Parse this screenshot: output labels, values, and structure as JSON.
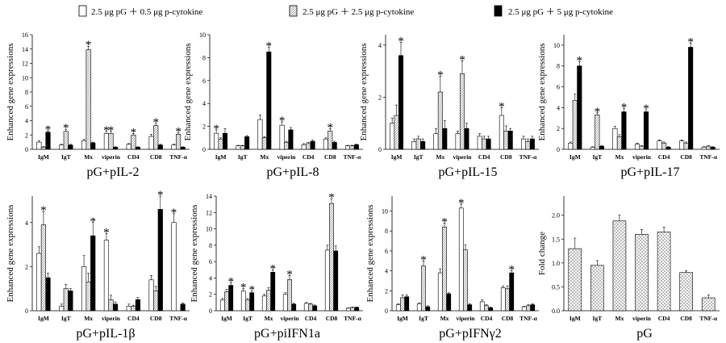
{
  "legend": [
    {
      "label": "2.5 μg pG ＋ 0.5 μg p-cytokine",
      "pattern": "white"
    },
    {
      "label": "2.5 μg pG ＋ 2.5 μg p-cytokine",
      "pattern": "hatch"
    },
    {
      "label": "2.5 μg pG ＋ 5 μg p-cytokine",
      "pattern": "black"
    }
  ],
  "colors": {
    "bar_black": "#000000",
    "bar_white": "#ffffff",
    "hatch": "#8a8a8a",
    "axis": "#000000"
  },
  "chart_data": [
    {
      "type": "bar",
      "title": "pG+pIL-2",
      "ylabel": "Enhanced gene expressions",
      "xlabel": "",
      "ylim": [
        0,
        16
      ],
      "yticks": [
        0,
        2,
        4,
        6,
        8,
        10,
        12,
        14,
        16
      ],
      "categories": [
        "IgM",
        "IgT",
        "Mx",
        "viperin",
        "CD4",
        "CD8",
        "TNF-α"
      ],
      "series": [
        {
          "name": "0.5 μg",
          "values": [
            1.0,
            0.6,
            1.2,
            2.2,
            0.7,
            1.8,
            0.6
          ],
          "errors": [
            0.2,
            0.1,
            0.2,
            0.3,
            0.1,
            0.3,
            0.1
          ],
          "sig": [
            false,
            false,
            false,
            true,
            false,
            false,
            false
          ]
        },
        {
          "name": "2.5 μg",
          "values": [
            0.3,
            2.5,
            13.9,
            2.2,
            2.0,
            3.3,
            2.1
          ],
          "errors": [
            0.1,
            0.3,
            0.5,
            0.3,
            0.2,
            0.3,
            0.2
          ],
          "sig": [
            false,
            true,
            true,
            true,
            true,
            true,
            true
          ]
        },
        {
          "name": "5 μg",
          "values": [
            2.4,
            0.6,
            0.9,
            0.3,
            0.3,
            0.6,
            0.3
          ],
          "errors": [
            0.2,
            0.1,
            0.1,
            0.05,
            0.05,
            0.1,
            0.05
          ],
          "sig": [
            true,
            false,
            false,
            false,
            false,
            false,
            false
          ]
        }
      ]
    },
    {
      "type": "bar",
      "title": "pG+pIL-8",
      "ylabel": "Enhanced gene expressions",
      "xlabel": "",
      "ylim": [
        0,
        10
      ],
      "yticks": [
        0,
        2,
        4,
        6,
        8,
        10
      ],
      "categories": [
        "IgM",
        "IgT",
        "Mx",
        "viperin",
        "CD4",
        "CD8",
        "TNF-α"
      ],
      "series": [
        {
          "name": "0.5 μg",
          "values": [
            1.4,
            0.3,
            2.6,
            2.1,
            0.4,
            0.9,
            0.3
          ],
          "errors": [
            0.3,
            0.05,
            0.4,
            0.3,
            0.1,
            0.1,
            0.05
          ],
          "sig": [
            true,
            false,
            false,
            true,
            false,
            false,
            false
          ]
        },
        {
          "name": "2.5 μg",
          "values": [
            0.9,
            0.3,
            1.0,
            0.6,
            0.5,
            1.6,
            0.3
          ],
          "errors": [
            0.1,
            0.05,
            0.1,
            0.1,
            0.1,
            0.2,
            0.05
          ],
          "sig": [
            false,
            false,
            false,
            false,
            false,
            true,
            false
          ]
        },
        {
          "name": "5 μg",
          "values": [
            1.4,
            1.1,
            8.5,
            1.7,
            0.7,
            0.6,
            0.4
          ],
          "errors": [
            0.4,
            0.1,
            0.4,
            0.2,
            0.1,
            0.1,
            0.05
          ],
          "sig": [
            false,
            false,
            true,
            false,
            false,
            false,
            false
          ]
        }
      ]
    },
    {
      "type": "bar",
      "title": "pG+pIL-15",
      "ylabel": "Enhanced gene expressions",
      "xlabel": "",
      "ylim": [
        0,
        4.4
      ],
      "yticks": [
        0,
        2,
        4
      ],
      "categories": [
        "IgM",
        "IgT",
        "Mx",
        "viperin",
        "CD4",
        "CD8",
        "TNF-α"
      ],
      "series": [
        {
          "name": "0.5 μg",
          "values": [
            1.0,
            0.3,
            0.6,
            0.6,
            0.5,
            1.3,
            0.4
          ],
          "errors": [
            0.2,
            0.1,
            0.2,
            0.1,
            0.1,
            0.3,
            0.1
          ],
          "sig": [
            false,
            false,
            false,
            false,
            false,
            true,
            false
          ]
        },
        {
          "name": "2.5 μg",
          "values": [
            1.3,
            0.4,
            2.2,
            2.9,
            0.4,
            0.7,
            0.3
          ],
          "errors": [
            0.4,
            0.1,
            0.6,
            0.5,
            0.1,
            0.2,
            0.1
          ],
          "sig": [
            false,
            false,
            true,
            true,
            false,
            false,
            false
          ]
        },
        {
          "name": "5 μg",
          "values": [
            3.6,
            0.3,
            0.8,
            0.8,
            0.4,
            0.7,
            0.4
          ],
          "errors": [
            0.5,
            0.1,
            0.3,
            0.2,
            0.1,
            0.1,
            0.1
          ],
          "sig": [
            true,
            false,
            false,
            false,
            false,
            false,
            false
          ]
        }
      ]
    },
    {
      "type": "bar",
      "title": "pG+pIL-17",
      "ylabel": "Enhanced gene expressions",
      "xlabel": "",
      "ylim": [
        0,
        11
      ],
      "yticks": [
        0,
        2,
        4,
        6,
        8,
        10
      ],
      "categories": [
        "IgM",
        "IgT",
        "Mx",
        "viperin",
        "CD4",
        "CD8",
        "TNF-α"
      ],
      "series": [
        {
          "name": "0.5 μg",
          "values": [
            0.6,
            0.2,
            2.0,
            0.5,
            0.8,
            0.8,
            0.2
          ],
          "errors": [
            0.1,
            0.05,
            0.2,
            0.1,
            0.1,
            0.1,
            0.05
          ],
          "sig": [
            false,
            false,
            false,
            false,
            false,
            false,
            false
          ]
        },
        {
          "name": "2.5 μg",
          "values": [
            4.7,
            3.3,
            1.2,
            0.3,
            0.6,
            0.6,
            0.3
          ],
          "errors": [
            0.6,
            0.2,
            0.2,
            0.05,
            0.1,
            0.1,
            0.05
          ],
          "sig": [
            false,
            true,
            false,
            false,
            false,
            false,
            false
          ]
        },
        {
          "name": "5 μg",
          "values": [
            8.0,
            0.3,
            3.6,
            3.6,
            0.2,
            9.8,
            0.2
          ],
          "errors": [
            0.4,
            0.05,
            0.3,
            0.2,
            0.05,
            0.4,
            0.05
          ],
          "sig": [
            true,
            false,
            true,
            true,
            false,
            true,
            false
          ]
        }
      ]
    },
    {
      "type": "bar",
      "title": "pG+pIL-1β",
      "ylabel": "Enhanced gene expressions",
      "xlabel": "",
      "ylim": [
        0,
        5.2
      ],
      "yticks": [
        0,
        2,
        4
      ],
      "categories": [
        "IgM",
        "IgT",
        "Mx",
        "viperin",
        "CD4",
        "CD8",
        "TNF-α"
      ],
      "series": [
        {
          "name": "0.5 μg",
          "values": [
            2.6,
            0.2,
            2.0,
            3.2,
            0.2,
            1.4,
            4.0
          ],
          "errors": [
            0.3,
            0.1,
            0.5,
            0.3,
            0.1,
            0.2,
            0.4
          ],
          "sig": [
            false,
            false,
            false,
            true,
            false,
            false,
            true
          ]
        },
        {
          "name": "2.5 μg",
          "values": [
            3.9,
            1.0,
            1.3,
            0.5,
            0.2,
            0.9,
            0.0
          ],
          "errors": [
            0.6,
            0.2,
            0.4,
            0.2,
            0.05,
            0.2,
            0.0
          ],
          "sig": [
            true,
            false,
            false,
            false,
            false,
            false,
            false
          ]
        },
        {
          "name": "5 μg",
          "values": [
            1.5,
            0.9,
            3.4,
            0.3,
            0.5,
            4.6,
            0.3
          ],
          "errors": [
            0.2,
            0.1,
            0.6,
            0.1,
            0.1,
            0.6,
            0.05
          ],
          "sig": [
            false,
            false,
            true,
            false,
            false,
            true,
            false
          ]
        }
      ]
    },
    {
      "type": "bar",
      "title": "pG+piIFN1a",
      "ylabel": "Enhanced gene expressions",
      "xlabel": "",
      "ylim": [
        0,
        14
      ],
      "yticks": [
        0,
        2,
        4,
        6,
        8,
        10,
        12,
        14
      ],
      "categories": [
        "IgM",
        "IgT",
        "Mx",
        "viperin",
        "CD4",
        "CD8",
        "TNF-α"
      ],
      "series": [
        {
          "name": "0.5 μg",
          "values": [
            1.3,
            2.4,
            1.8,
            2.0,
            0.9,
            7.4,
            0.3
          ],
          "errors": [
            0.2,
            0.3,
            0.2,
            0.2,
            0.1,
            0.6,
            0.05
          ],
          "sig": [
            false,
            true,
            false,
            false,
            false,
            false,
            false
          ]
        },
        {
          "name": "2.5 μg",
          "values": [
            2.3,
            1.3,
            2.5,
            3.8,
            0.8,
            13.1,
            0.4
          ],
          "errors": [
            0.3,
            0.2,
            0.3,
            0.5,
            0.1,
            0.6,
            0.05
          ],
          "sig": [
            false,
            false,
            false,
            true,
            false,
            true,
            false
          ]
        },
        {
          "name": "5 μg",
          "values": [
            3.1,
            2.2,
            4.7,
            0.8,
            0.6,
            7.3,
            0.4
          ],
          "errors": [
            0.3,
            0.2,
            0.3,
            0.1,
            0.1,
            0.6,
            0.05
          ],
          "sig": [
            true,
            true,
            true,
            false,
            false,
            false,
            false
          ]
        }
      ]
    },
    {
      "type": "bar",
      "title": "pG+pIFNγ2",
      "ylabel": "Enhanced gene expressions",
      "xlabel": "",
      "ylim": [
        0,
        11.5
      ],
      "yticks": [
        0,
        2,
        4,
        6,
        8,
        10
      ],
      "categories": [
        "IgM",
        "IgT",
        "Mx",
        "viperin",
        "CD4",
        "CD8",
        "TNF-α"
      ],
      "series": [
        {
          "name": "0.5 μg",
          "values": [
            0.6,
            0.7,
            3.8,
            10.3,
            0.9,
            2.3,
            0.4
          ],
          "errors": [
            0.1,
            0.1,
            0.4,
            0.4,
            0.2,
            0.2,
            0.05
          ],
          "sig": [
            false,
            false,
            false,
            true,
            false,
            false,
            false
          ]
        },
        {
          "name": "2.5 μg",
          "values": [
            1.3,
            4.5,
            8.4,
            6.1,
            0.5,
            2.2,
            0.5
          ],
          "errors": [
            0.3,
            0.5,
            0.4,
            0.5,
            0.1,
            0.3,
            0.1
          ],
          "sig": [
            false,
            true,
            true,
            false,
            false,
            false,
            false
          ]
        },
        {
          "name": "5 μg",
          "values": [
            1.4,
            0.4,
            1.7,
            0.6,
            0.3,
            3.8,
            0.6
          ],
          "errors": [
            0.2,
            0.1,
            0.1,
            0.1,
            0.05,
            0.2,
            0.1
          ],
          "sig": [
            false,
            false,
            false,
            false,
            false,
            true,
            false
          ]
        }
      ]
    },
    {
      "type": "bar",
      "title": "pG",
      "ylabel": "Fold change",
      "xlabel": "",
      "ylim": [
        0,
        2.4
      ],
      "yticks": [
        0.0,
        0.5,
        1.0,
        1.5,
        2.0
      ],
      "categories": [
        "IgM",
        "IgT",
        "Mx",
        "viperin",
        "CD4",
        "CD8",
        "TNF-α"
      ],
      "series": [
        {
          "name": "pG",
          "values": [
            1.3,
            0.95,
            1.88,
            1.6,
            1.65,
            0.8,
            0.27
          ],
          "errors": [
            0.22,
            0.1,
            0.12,
            0.1,
            0.1,
            0.04,
            0.06
          ],
          "sig": [
            false,
            false,
            false,
            false,
            false,
            false,
            false
          ]
        }
      ]
    }
  ]
}
